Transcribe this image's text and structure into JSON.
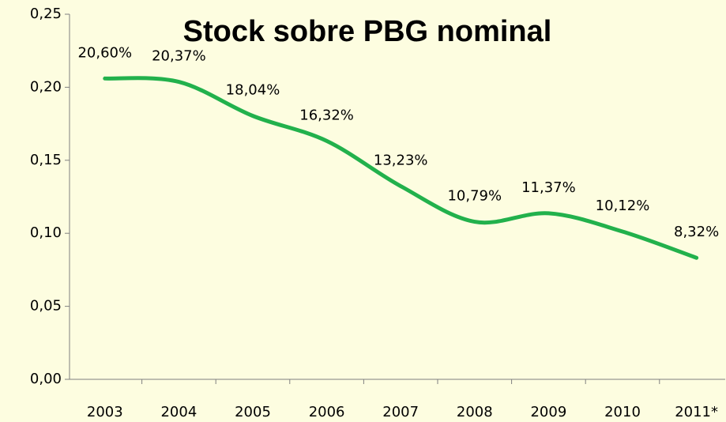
{
  "chart_data": {
    "type": "line",
    "title": "Stock sobre PBG nominal",
    "categories": [
      "2003",
      "2004",
      "2005",
      "2006",
      "2007",
      "2008",
      "2009",
      "2010",
      "2011*"
    ],
    "series": [
      {
        "name": "Stock sobre PBG nominal",
        "color": "#22b14c",
        "values": [
          0.206,
          0.2037,
          0.1804,
          0.1632,
          0.1323,
          0.1079,
          0.1137,
          0.1012,
          0.0832
        ],
        "value_labels": [
          "20,60%",
          "20,37%",
          "18,04%",
          "16,32%",
          "13,23%",
          "10,79%",
          "11,37%",
          "10,12%",
          "8,32%"
        ]
      }
    ],
    "ylim": [
      0,
      0.25
    ],
    "yticks": [
      {
        "value": 0,
        "label": "0,00"
      },
      {
        "value": 0.05,
        "label": "0,05"
      },
      {
        "value": 0.1,
        "label": "0,10"
      },
      {
        "value": 0.15,
        "label": "0,15"
      },
      {
        "value": 0.2,
        "label": "0,20"
      },
      {
        "value": 0.25,
        "label": "0,25"
      }
    ],
    "grid": false,
    "smooth": true
  }
}
